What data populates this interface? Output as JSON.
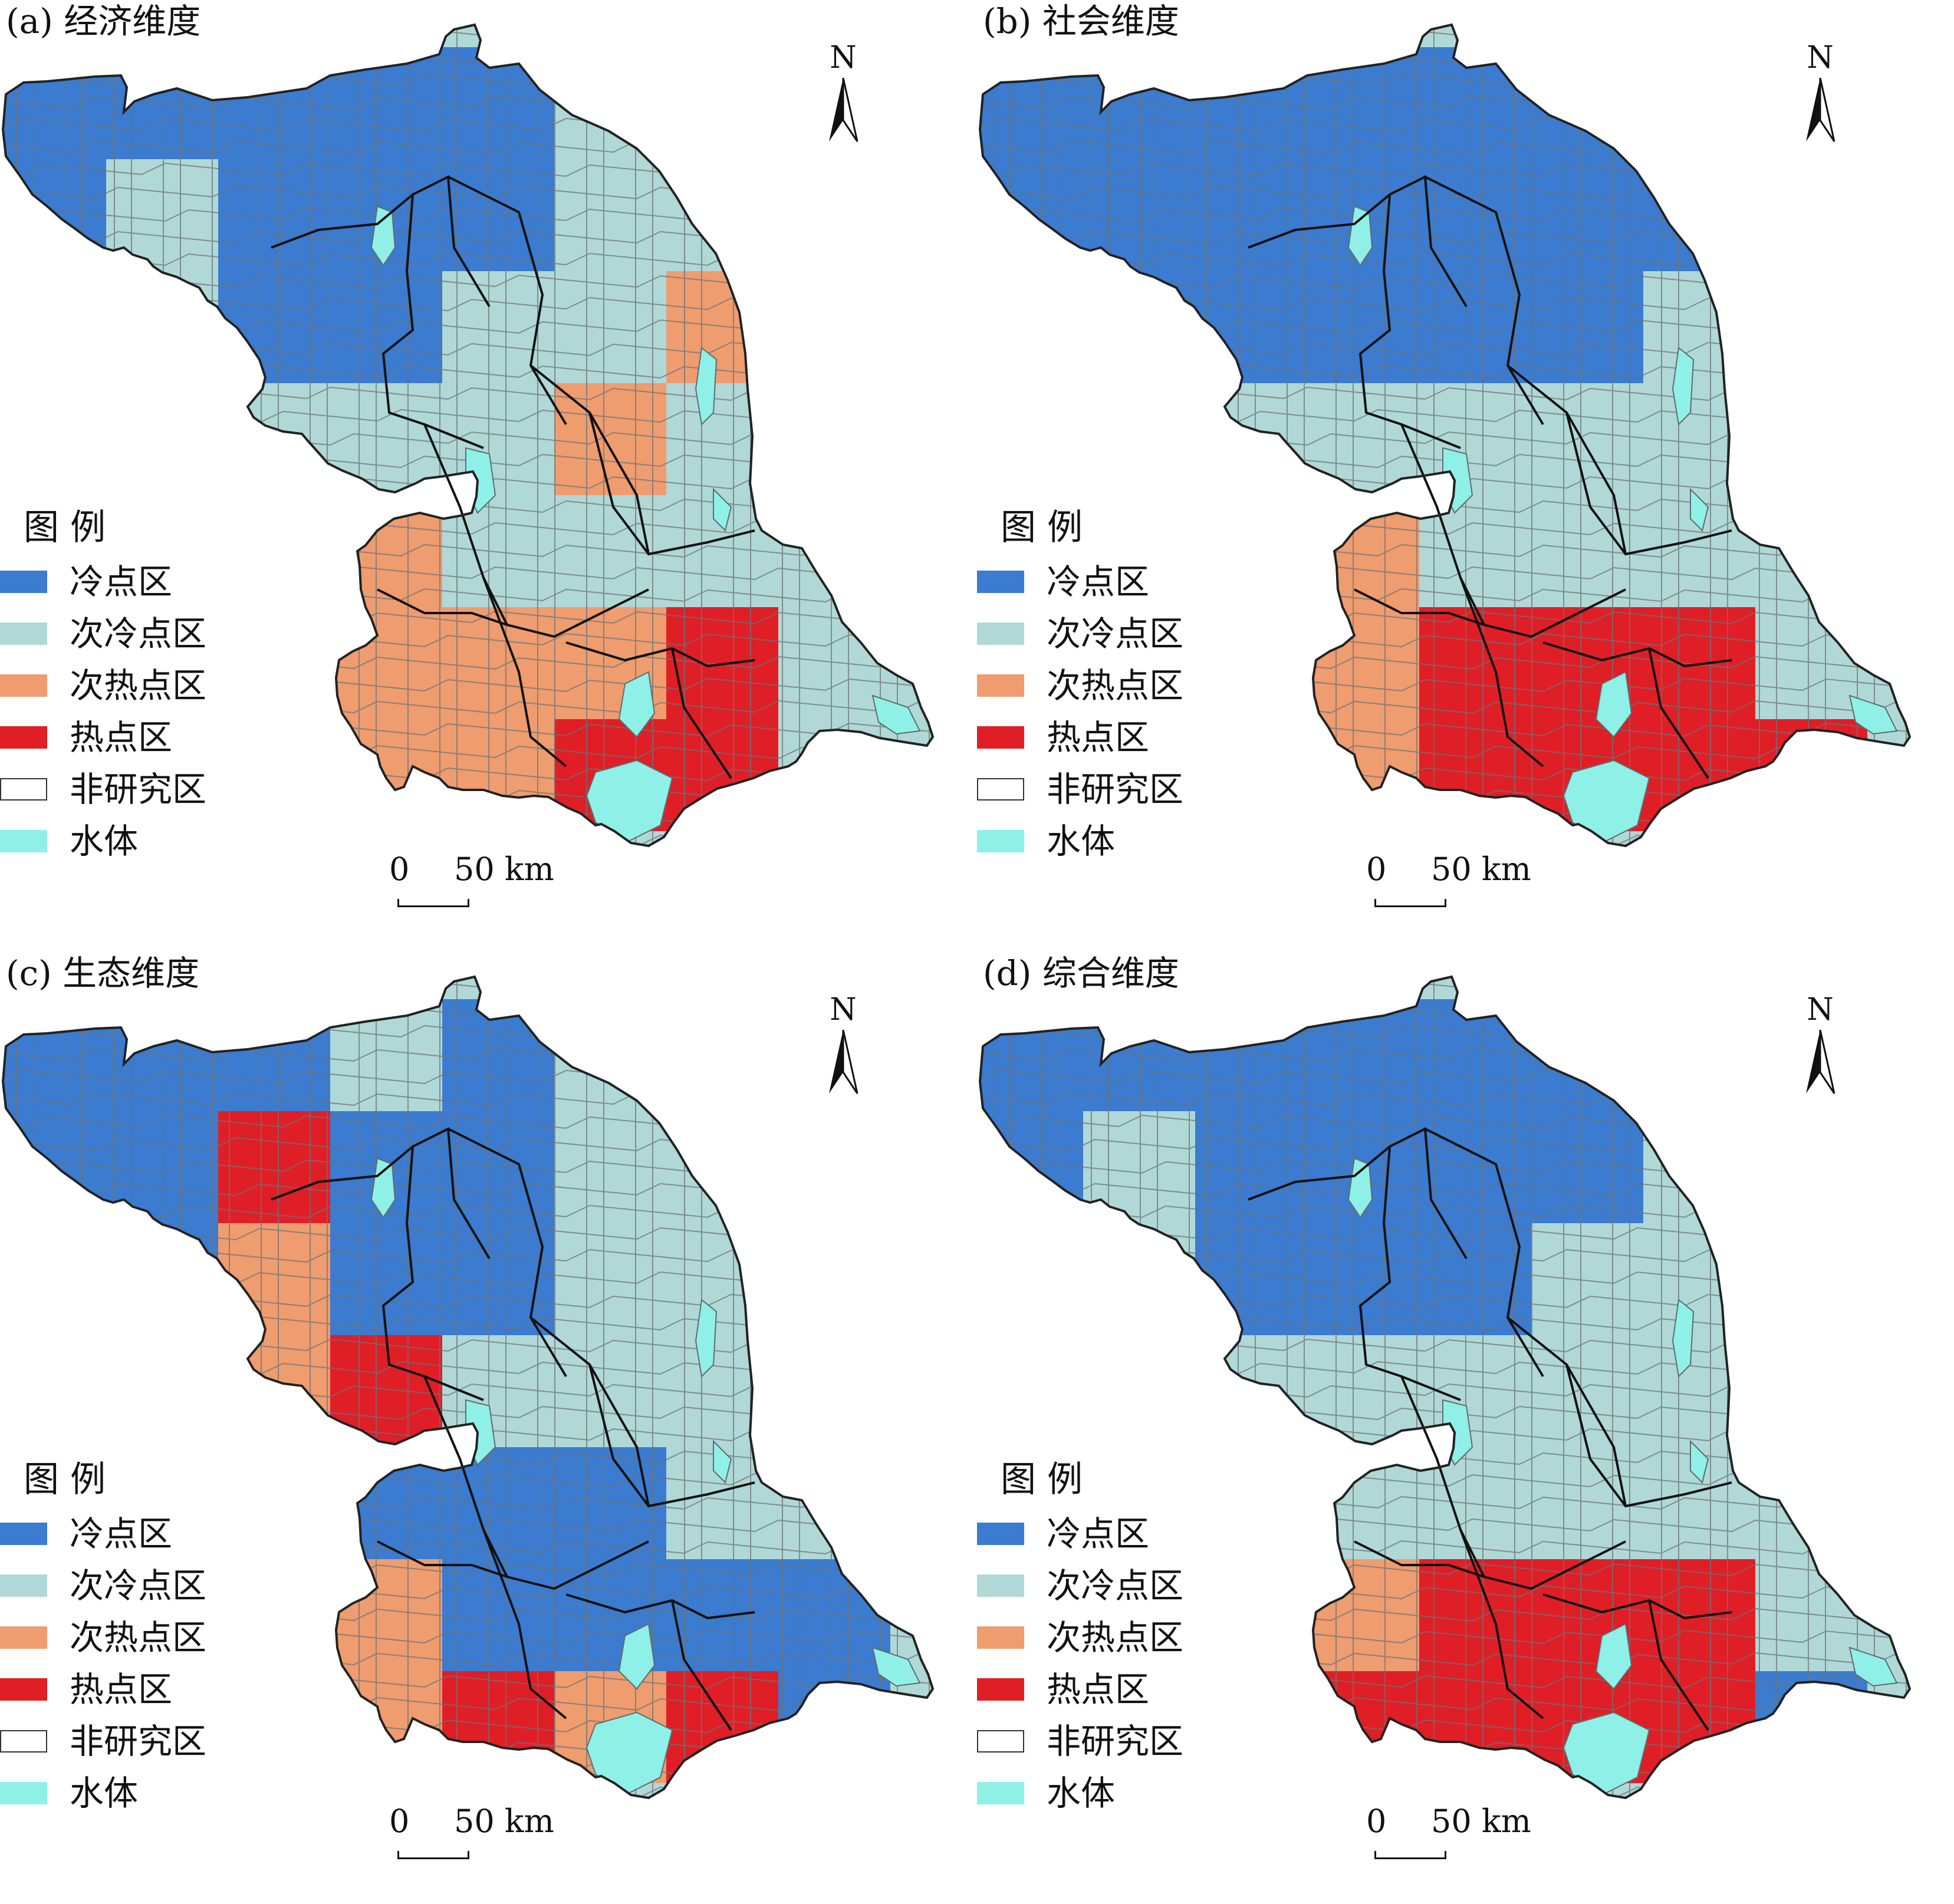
{
  "figure": {
    "panels": [
      {
        "id": "a",
        "title": "(a) 经济维度",
        "pattern": [
          [
            1,
            1,
            1,
            1,
            2,
            2,
            0
          ],
          [
            2,
            1,
            1,
            1,
            2,
            2,
            2
          ],
          [
            2,
            1,
            1,
            2,
            2,
            3,
            3
          ],
          [
            2,
            2,
            2,
            2,
            3,
            2,
            2
          ],
          [
            3,
            3,
            3,
            2,
            2,
            2,
            2
          ],
          [
            3,
            3,
            3,
            3,
            3,
            4,
            2
          ],
          [
            4,
            3,
            3,
            3,
            4,
            4,
            2
          ]
        ]
      },
      {
        "id": "b",
        "title": "(b) 社会维度",
        "pattern": [
          [
            1,
            1,
            1,
            1,
            1,
            1,
            0
          ],
          [
            1,
            1,
            1,
            1,
            1,
            1,
            2
          ],
          [
            1,
            1,
            1,
            1,
            1,
            2,
            2
          ],
          [
            2,
            2,
            2,
            2,
            2,
            2,
            2
          ],
          [
            3,
            3,
            3,
            2,
            2,
            2,
            2
          ],
          [
            4,
            4,
            3,
            4,
            4,
            4,
            2
          ],
          [
            4,
            3,
            3,
            4,
            4,
            4,
            4
          ]
        ]
      },
      {
        "id": "c",
        "title": "(c) 生态维度",
        "pattern": [
          [
            1,
            1,
            2,
            1,
            2,
            3,
            0
          ],
          [
            1,
            4,
            1,
            1,
            2,
            2,
            4
          ],
          [
            1,
            3,
            1,
            1,
            2,
            2,
            2
          ],
          [
            3,
            3,
            4,
            2,
            2,
            2,
            2
          ],
          [
            2,
            2,
            1,
            1,
            1,
            2,
            2
          ],
          [
            3,
            3,
            3,
            1,
            1,
            1,
            1
          ],
          [
            4,
            4,
            3,
            4,
            3,
            4,
            1
          ]
        ]
      },
      {
        "id": "d",
        "title": "(d) 综合维度",
        "pattern": [
          [
            1,
            1,
            1,
            1,
            1,
            1,
            0
          ],
          [
            2,
            1,
            1,
            1,
            1,
            2,
            2
          ],
          [
            2,
            1,
            1,
            1,
            2,
            2,
            2
          ],
          [
            2,
            2,
            2,
            2,
            2,
            2,
            2
          ],
          [
            3,
            3,
            2,
            2,
            2,
            2,
            2
          ],
          [
            4,
            4,
            3,
            4,
            4,
            4,
            2
          ],
          [
            4,
            3,
            4,
            4,
            4,
            4,
            1
          ]
        ]
      }
    ],
    "north_label": "N",
    "legend": {
      "title": "图  例",
      "items": [
        {
          "label": "冷点区",
          "color": "#3b7bd0"
        },
        {
          "label": "次冷点区",
          "color": "#b0d8d6"
        },
        {
          "label": "次热点区",
          "color": "#ef9c6f"
        },
        {
          "label": "热点区",
          "color": "#e01e26"
        },
        {
          "label": "非研究区",
          "color": "#ffffff"
        },
        {
          "label": "水体",
          "color": "#8ff0e8"
        }
      ]
    },
    "scale": {
      "zero": "0",
      "distance": "50 km"
    },
    "class_colors": [
      "#ffffff",
      "#3b7bd0",
      "#b0d8d6",
      "#ef9c6f",
      "#e01e26",
      "#8ff0e8"
    ]
  }
}
